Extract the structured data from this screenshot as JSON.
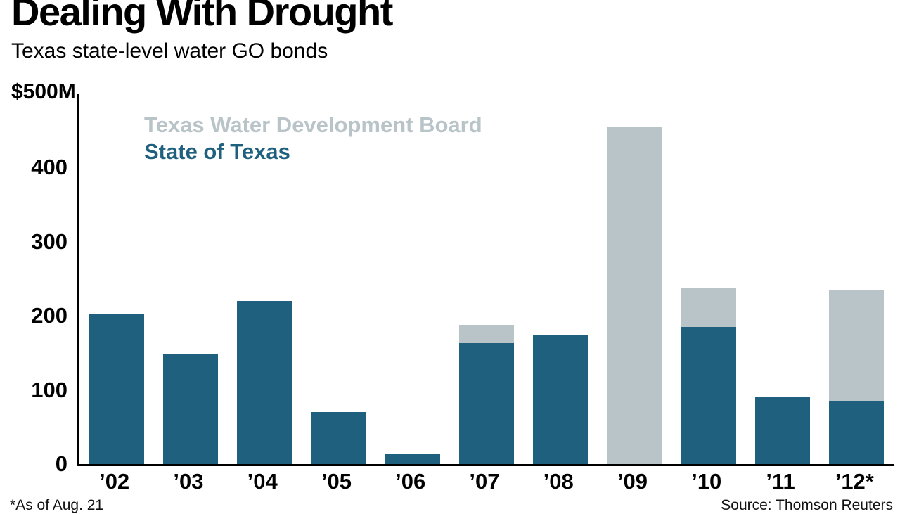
{
  "header": {
    "title": "Dealing With Drought",
    "subtitle": "Texas state-level water GO bonds"
  },
  "chart_data": {
    "type": "bar",
    "stacked": true,
    "title": "Dealing With Drought",
    "subtitle": "Texas state-level water GO bonds",
    "y_axis_top_label": "$500M",
    "ylim": [
      0,
      500
    ],
    "yticks": [
      400,
      300,
      200,
      100,
      0
    ],
    "grid": false,
    "legend_position": "top-left-inside",
    "categories": [
      "’02",
      "’03",
      "’04",
      "’05",
      "’06",
      "’07",
      "’08",
      "’09",
      "’10",
      "’11",
      "’12*"
    ],
    "series": [
      {
        "name": "State of Texas",
        "color": "#20607f",
        "values": [
          202,
          148,
          220,
          70,
          13,
          163,
          174,
          0,
          185,
          91,
          85
        ]
      },
      {
        "name": "Texas Water Development Board",
        "color": "#b9c4c9",
        "values": [
          0,
          0,
          0,
          0,
          0,
          25,
          0,
          455,
          53,
          0,
          150
        ]
      }
    ],
    "legend": [
      {
        "label": "Texas Water Development Board",
        "color": "#b9c4c9"
      },
      {
        "label": "State of Texas",
        "color": "#20607f"
      }
    ]
  },
  "footer": {
    "footnote": "*As of Aug. 21",
    "source": "Source: Thomson Reuters"
  }
}
